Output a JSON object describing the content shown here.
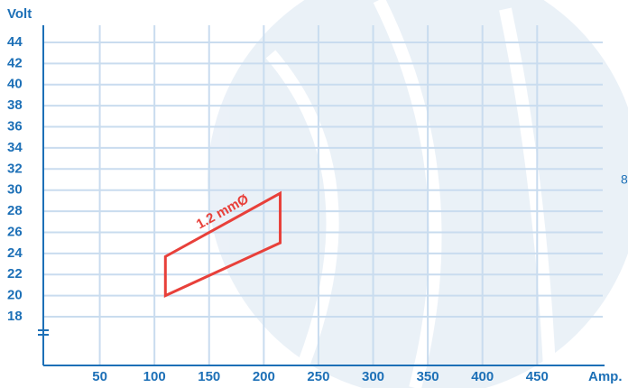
{
  "chart_data": {
    "type": "line",
    "y_label": "Volt",
    "x_label": "Amp.",
    "annotation": "8",
    "series": [
      {
        "name": "1.2 mmØ",
        "color": "#e8403a",
        "x": [
          110,
          110,
          215,
          215
        ],
        "values": [
          20,
          23.7,
          29.7,
          25
        ]
      }
    ],
    "xlim": [
      0,
      510
    ],
    "xticks": [
      50,
      100,
      150,
      200,
      250,
      300,
      350,
      400,
      450
    ],
    "ylim": [
      18,
      44
    ],
    "yticks": [
      18,
      20,
      22,
      24,
      26,
      28,
      30,
      32,
      34,
      36,
      38,
      40,
      42,
      44
    ],
    "grid": true,
    "axis_color": "#1d70b7",
    "grid_color": "#c9dcef"
  }
}
